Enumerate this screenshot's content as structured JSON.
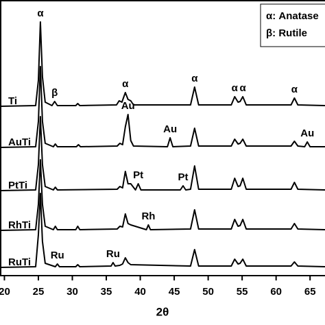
{
  "chart_data": {
    "type": "line",
    "xlabel": "2θ",
    "xlim": [
      19.35,
      67.2
    ],
    "xticks": [
      20,
      25,
      30,
      35,
      40,
      45,
      50,
      55,
      60,
      65
    ],
    "legend_notes": [
      "α: Anatase",
      "β: Rutile"
    ],
    "series": [
      {
        "name": "Ti",
        "color": "#000000",
        "x": [
          19.4,
          24.6,
          25.0,
          25.3,
          25.6,
          26.0,
          27.0,
          27.4,
          27.8,
          30.5,
          30.8,
          31.1,
          36.5,
          36.9,
          37.3,
          37.8,
          38.2,
          38.6,
          39.0,
          47.4,
          48.0,
          48.6,
          53.4,
          53.9,
          54.4,
          54.7,
          55.1,
          55.6,
          62.2,
          62.7,
          63.2,
          67.2
        ],
        "values": [
          2,
          3,
          40,
          125,
          45,
          8,
          3,
          9,
          3,
          3,
          6,
          3,
          4,
          10,
          8,
          22,
          12,
          10,
          4,
          4,
          30,
          4,
          4,
          16,
          8,
          9,
          16,
          4,
          4,
          14,
          4,
          3
        ],
        "annotations": [
          {
            "text": "α",
            "x": 25.3
          },
          {
            "text": "β",
            "x": 27.4
          },
          {
            "text": "α",
            "x": 37.8
          },
          {
            "text": "α",
            "x": 48.0
          },
          {
            "text": "α",
            "x": 53.9
          },
          {
            "text": "α",
            "x": 55.1
          },
          {
            "text": "α",
            "x": 62.7
          }
        ]
      },
      {
        "name": "AuTi",
        "color": "#000000",
        "x": [
          19.4,
          24.6,
          25.0,
          25.3,
          25.6,
          26.0,
          27.2,
          27.5,
          27.8,
          30.6,
          30.9,
          31.2,
          36.6,
          37.0,
          37.4,
          37.8,
          38.2,
          38.6,
          39.0,
          44.0,
          44.4,
          44.8,
          47.4,
          48.0,
          48.6,
          53.4,
          53.9,
          54.4,
          54.7,
          55.1,
          55.6,
          62.2,
          62.7,
          63.2,
          64.2,
          64.6,
          65.0,
          67.2
        ],
        "values": [
          2,
          3,
          40,
          120,
          40,
          8,
          3,
          7,
          3,
          3,
          6,
          3,
          4,
          8,
          6,
          32,
          50,
          12,
          4,
          3,
          16,
          3,
          4,
          30,
          4,
          4,
          14,
          7,
          8,
          14,
          4,
          4,
          11,
          4,
          3,
          10,
          3,
          3
        ],
        "annotations": [
          {
            "text": "Au",
            "x": 38.2
          },
          {
            "text": "Au",
            "x": 44.4
          },
          {
            "text": "Au",
            "x": 64.6
          }
        ]
      },
      {
        "name": "PtTi",
        "color": "#000000",
        "x": [
          19.4,
          24.6,
          25.0,
          25.3,
          25.6,
          26.0,
          27.2,
          27.5,
          27.8,
          36.6,
          37.0,
          37.4,
          37.8,
          38.2,
          38.6,
          39.3,
          39.7,
          40.1,
          45.9,
          46.3,
          46.7,
          47.4,
          48.0,
          48.6,
          53.4,
          53.9,
          54.4,
          54.7,
          55.1,
          55.6,
          62.2,
          62.7,
          63.2,
          67.2
        ],
        "values": [
          2,
          3,
          40,
          110,
          40,
          8,
          3,
          7,
          3,
          4,
          8,
          6,
          30,
          12,
          12,
          3,
          12,
          3,
          3,
          9,
          3,
          4,
          38,
          4,
          4,
          20,
          8,
          9,
          20,
          4,
          4,
          14,
          4,
          3
        ],
        "annotations": [
          {
            "text": "Pt",
            "x": 39.7
          },
          {
            "text": "Pt",
            "x": 46.3
          }
        ]
      },
      {
        "name": "RhTi",
        "color": "#000000",
        "x": [
          19.4,
          24.6,
          25.0,
          25.3,
          25.6,
          26.0,
          27.2,
          27.5,
          27.8,
          30.5,
          30.8,
          31.1,
          36.6,
          37.0,
          37.4,
          37.8,
          38.2,
          38.6,
          40.9,
          41.2,
          41.5,
          47.4,
          48.0,
          48.6,
          53.4,
          53.9,
          54.4,
          54.7,
          55.1,
          55.6,
          62.2,
          62.7,
          63.2,
          67.2
        ],
        "values": [
          2,
          3,
          40,
          105,
          40,
          8,
          3,
          8,
          3,
          3,
          8,
          3,
          4,
          8,
          7,
          26,
          12,
          10,
          3,
          10,
          3,
          4,
          32,
          4,
          4,
          18,
          8,
          9,
          18,
          4,
          4,
          12,
          4,
          3
        ],
        "annotations": [
          {
            "text": "Rh",
            "x": 41.2
          }
        ]
      },
      {
        "name": "RuTi",
        "color": "#000000",
        "x": [
          19.4,
          24.6,
          25.0,
          25.3,
          25.6,
          26.0,
          27.5,
          27.8,
          28.1,
          30.5,
          30.8,
          31.1,
          35.7,
          36.0,
          36.3,
          37.0,
          37.4,
          37.8,
          38.2,
          38.6,
          47.4,
          48.0,
          48.6,
          53.4,
          53.9,
          54.4,
          54.7,
          55.1,
          55.6,
          62.2,
          62.7,
          63.2,
          67.2
        ],
        "values": [
          2,
          3,
          50,
          110,
          40,
          8,
          3,
          7,
          3,
          3,
          6,
          3,
          4,
          9,
          4,
          5,
          7,
          16,
          9,
          6,
          4,
          28,
          4,
          4,
          14,
          7,
          8,
          14,
          4,
          4,
          10,
          4,
          3
        ],
        "annotations": [
          {
            "text": "Ru",
            "x": 27.8
          },
          {
            "text": "Ru",
            "x": 36.0
          }
        ]
      }
    ]
  }
}
